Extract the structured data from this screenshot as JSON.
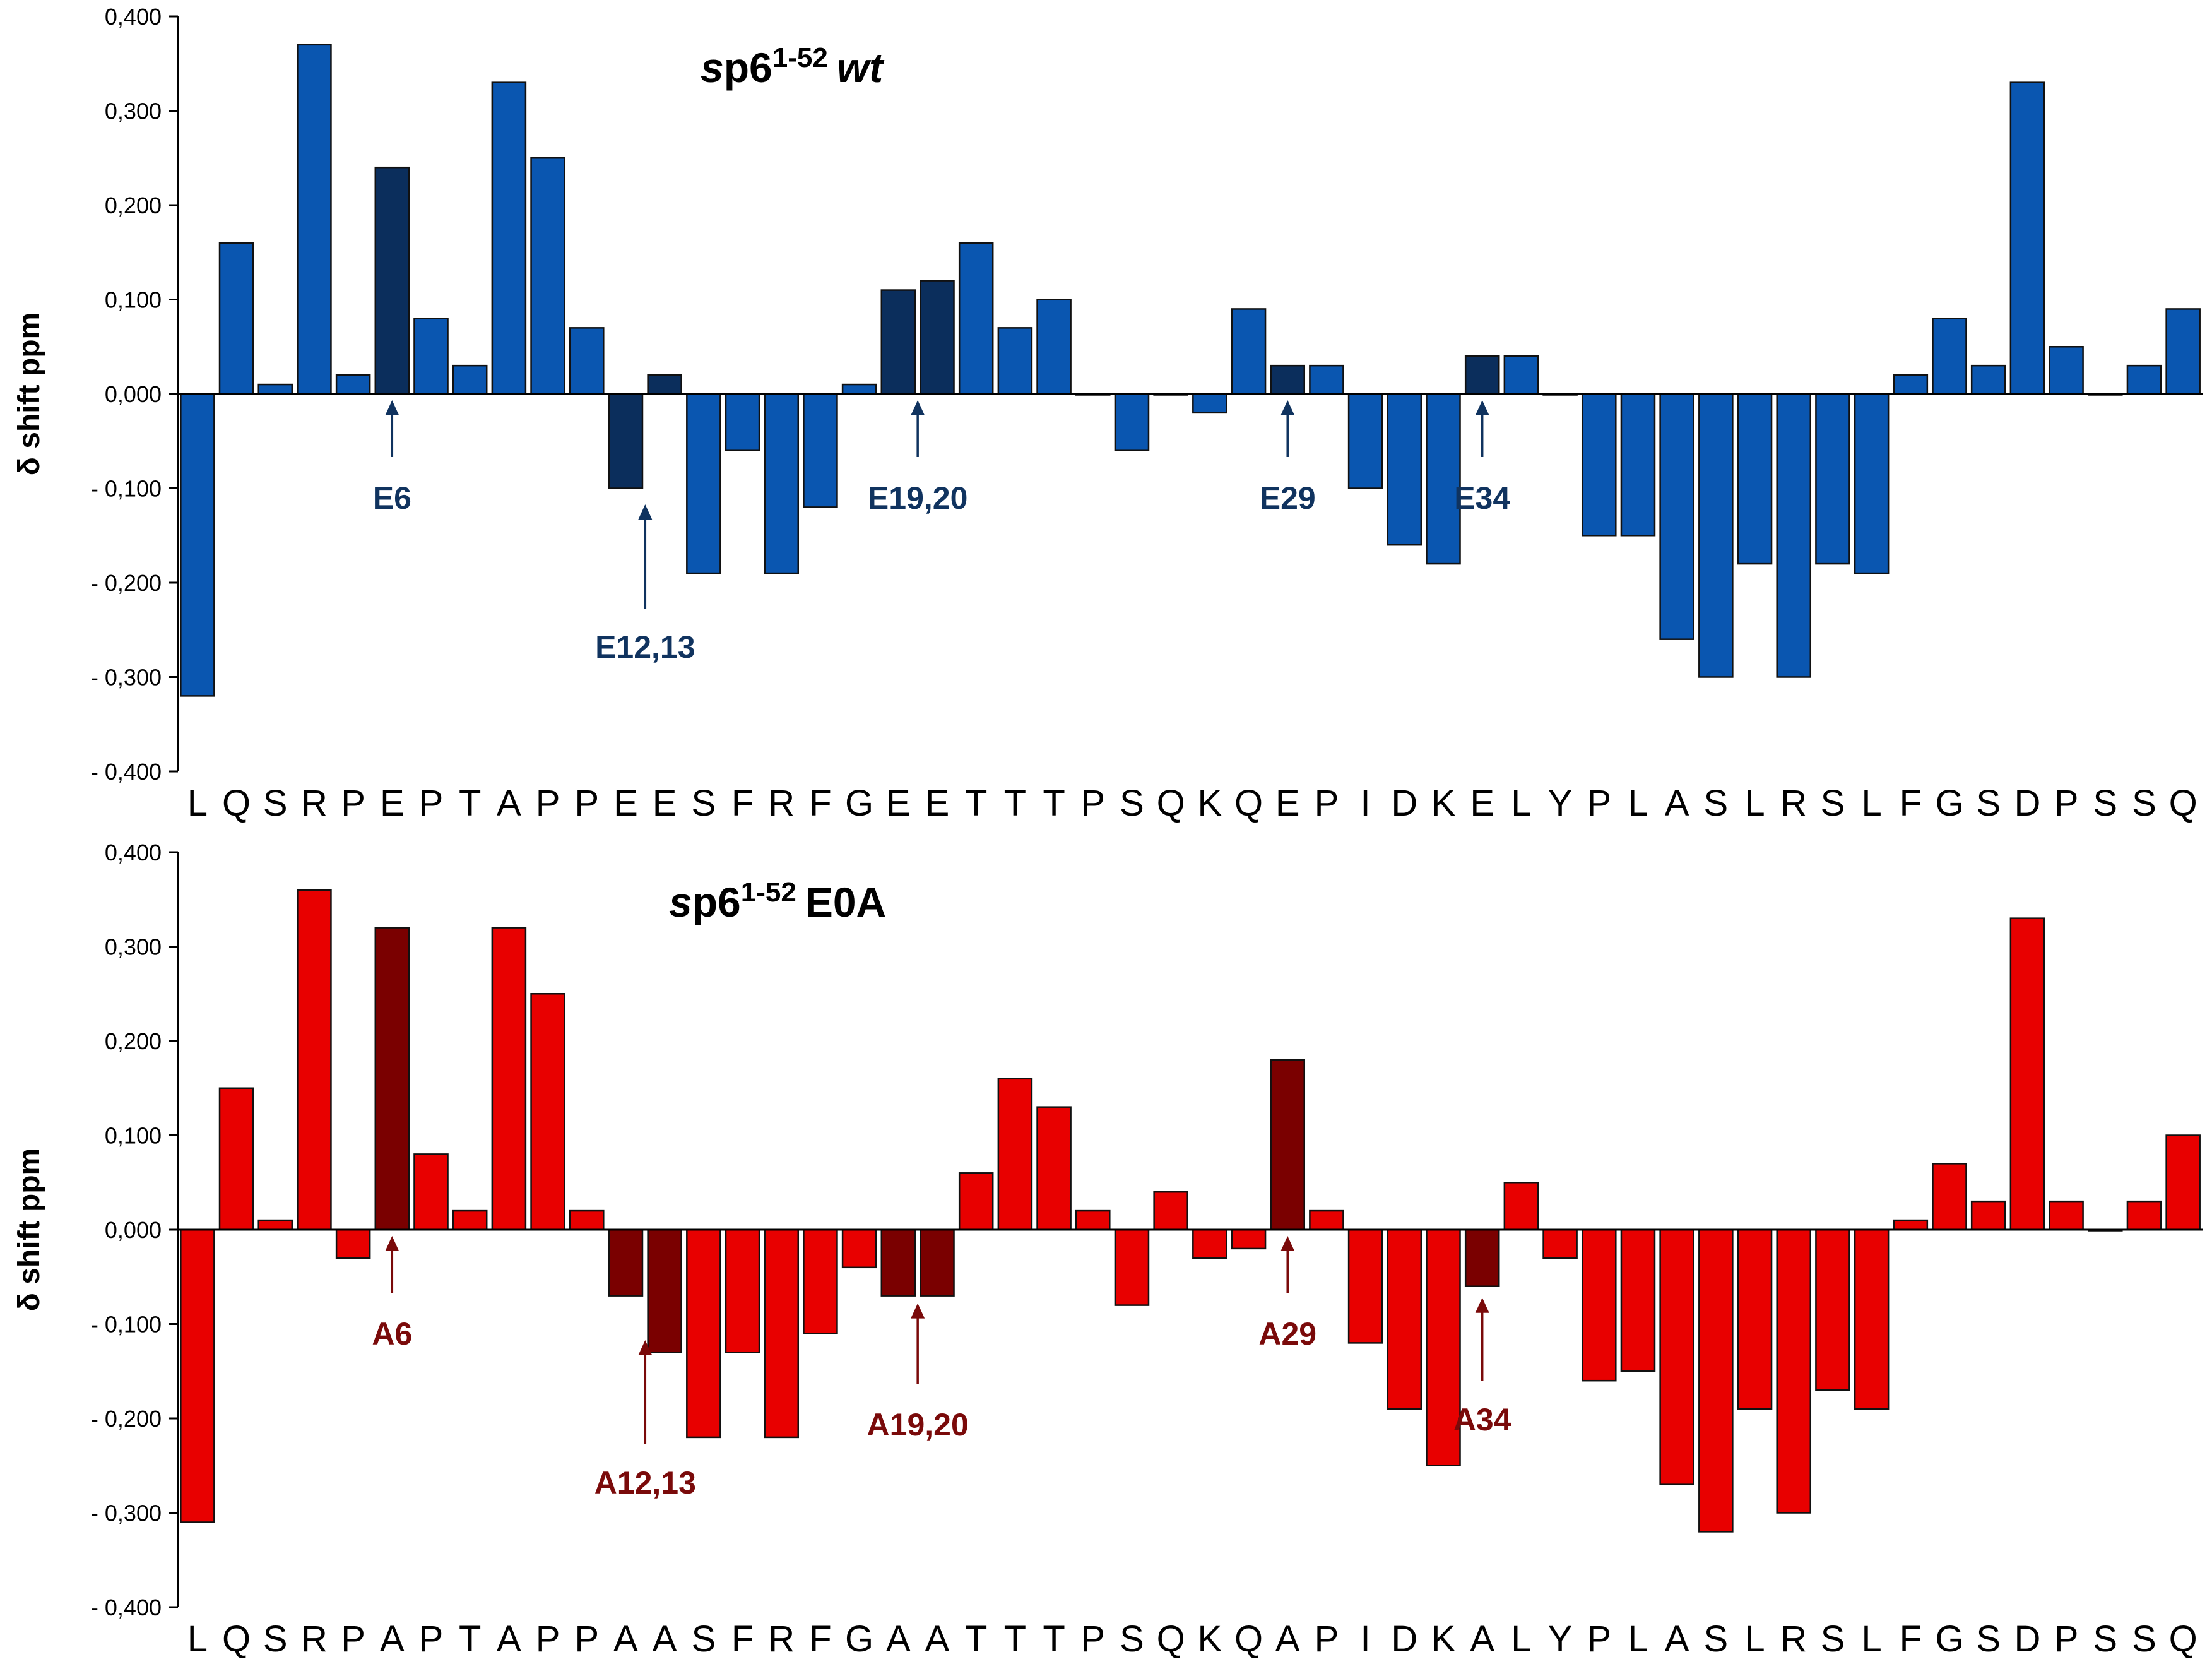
{
  "chart_data": [
    {
      "type": "bar",
      "title": {
        "prefix": "sp6",
        "superscript": "1-52",
        "suffix": "wt"
      },
      "ylabel": "δ shift ppm",
      "ylim": [
        -0.4,
        0.4
      ],
      "yticks": [
        "0,400",
        "0,300",
        "0,200",
        "0,100",
        "0,000",
        "- 0,100",
        "- 0,200",
        "- 0,300",
        "- 0,400"
      ],
      "categories": [
        "L",
        "Q",
        "S",
        "R",
        "P",
        "E",
        "P",
        "T",
        "A",
        "P",
        "P",
        "E",
        "E",
        "S",
        "F",
        "R",
        "F",
        "G",
        "E",
        "E",
        "T",
        "T",
        "T",
        "P",
        "S",
        "Q",
        "K",
        "Q",
        "E",
        "P",
        "I",
        "D",
        "K",
        "E",
        "L",
        "Y",
        "P",
        "L",
        "A",
        "S",
        "L",
        "R",
        "S",
        "L",
        "F",
        "G",
        "S",
        "D",
        "P",
        "S",
        "S",
        "Q"
      ],
      "values": [
        -0.32,
        0.16,
        0.01,
        0.37,
        0.02,
        0.24,
        0.08,
        0.03,
        0.33,
        0.25,
        0.07,
        -0.1,
        0.02,
        -0.19,
        -0.06,
        -0.19,
        -0.12,
        0.01,
        0.11,
        0.12,
        0.16,
        0.07,
        0.1,
        0,
        -0.06,
        0,
        -0.02,
        0.09,
        0.03,
        0.03,
        -0.1,
        -0.16,
        -0.18,
        0.04,
        0.04,
        0,
        -0.15,
        -0.15,
        -0.26,
        -0.3,
        -0.18,
        -0.3,
        -0.18,
        -0.19,
        0.02,
        0.08,
        0.03,
        0.33,
        0.05,
        0,
        0.03,
        0.09
      ],
      "highlight": [
        5,
        11,
        12,
        18,
        19,
        28,
        33
      ],
      "colors": {
        "bar": "#0a56b0",
        "highlight": "#0b2e5c",
        "annotation": "#10335f"
      },
      "annotations": [
        {
          "text": "E6",
          "target": 5,
          "direction": "up",
          "label_pos": "below-zero"
        },
        {
          "text": "E12,13",
          "target": 11.5,
          "direction": "up",
          "label_pos": "below-neg"
        },
        {
          "text": "E19,20",
          "target": 18.5,
          "direction": "up",
          "label_pos": "below-zero"
        },
        {
          "text": "E29",
          "target": 28,
          "direction": "up",
          "label_pos": "below-zero"
        },
        {
          "text": "E34",
          "target": 33,
          "direction": "up",
          "label_pos": "below-zero"
        }
      ]
    },
    {
      "type": "bar",
      "title": {
        "prefix": "sp6",
        "superscript": "1-52",
        "suffix": "E0A"
      },
      "ylabel": "δ shift ppm",
      "ylim": [
        -0.4,
        0.4
      ],
      "yticks": [
        "0,400",
        "0,300",
        "0,200",
        "0,100",
        "0,000",
        "- 0,100",
        "- 0,200",
        "- 0,300",
        "- 0,400"
      ],
      "categories": [
        "L",
        "Q",
        "S",
        "R",
        "P",
        "A",
        "P",
        "T",
        "A",
        "P",
        "P",
        "A",
        "A",
        "S",
        "F",
        "R",
        "F",
        "G",
        "A",
        "A",
        "T",
        "T",
        "T",
        "P",
        "S",
        "Q",
        "K",
        "Q",
        "A",
        "P",
        "I",
        "D",
        "K",
        "A",
        "L",
        "Y",
        "P",
        "L",
        "A",
        "S",
        "L",
        "R",
        "S",
        "L",
        "F",
        "G",
        "S",
        "D",
        "P",
        "S",
        "S",
        "Q"
      ],
      "values": [
        -0.31,
        0.15,
        0.01,
        0.36,
        -0.03,
        0.32,
        0.08,
        0.02,
        0.32,
        0.25,
        0.02,
        -0.07,
        -0.13,
        -0.22,
        -0.13,
        -0.22,
        -0.11,
        -0.04,
        -0.07,
        -0.07,
        0.06,
        0.16,
        0.13,
        0.02,
        -0.08,
        0.04,
        -0.03,
        -0.02,
        0.18,
        0.02,
        -0.12,
        -0.19,
        -0.25,
        -0.06,
        0.05,
        -0.03,
        -0.16,
        -0.15,
        -0.27,
        -0.32,
        -0.19,
        -0.3,
        -0.17,
        -0.19,
        0.01,
        0.07,
        0.03,
        0.33,
        0.03,
        0,
        0.03,
        0.1
      ],
      "highlight": [
        5,
        11,
        12,
        18,
        19,
        28,
        33
      ],
      "colors": {
        "bar": "#e80000",
        "highlight": "#7a0000",
        "annotation": "#7a0a0a"
      },
      "annotations": [
        {
          "text": "A6",
          "target": 5,
          "direction": "up",
          "label_pos": "below-zero"
        },
        {
          "text": "A12,13",
          "target": 11.5,
          "direction": "up",
          "label_pos": "below-neg"
        },
        {
          "text": "A19,20",
          "target": 18.5,
          "direction": "up",
          "label_pos": "below-neg2"
        },
        {
          "text": "A29",
          "target": 28,
          "direction": "up",
          "label_pos": "below-zero"
        },
        {
          "text": "A34",
          "target": 33,
          "direction": "up",
          "label_pos": "below-bar"
        }
      ]
    }
  ]
}
